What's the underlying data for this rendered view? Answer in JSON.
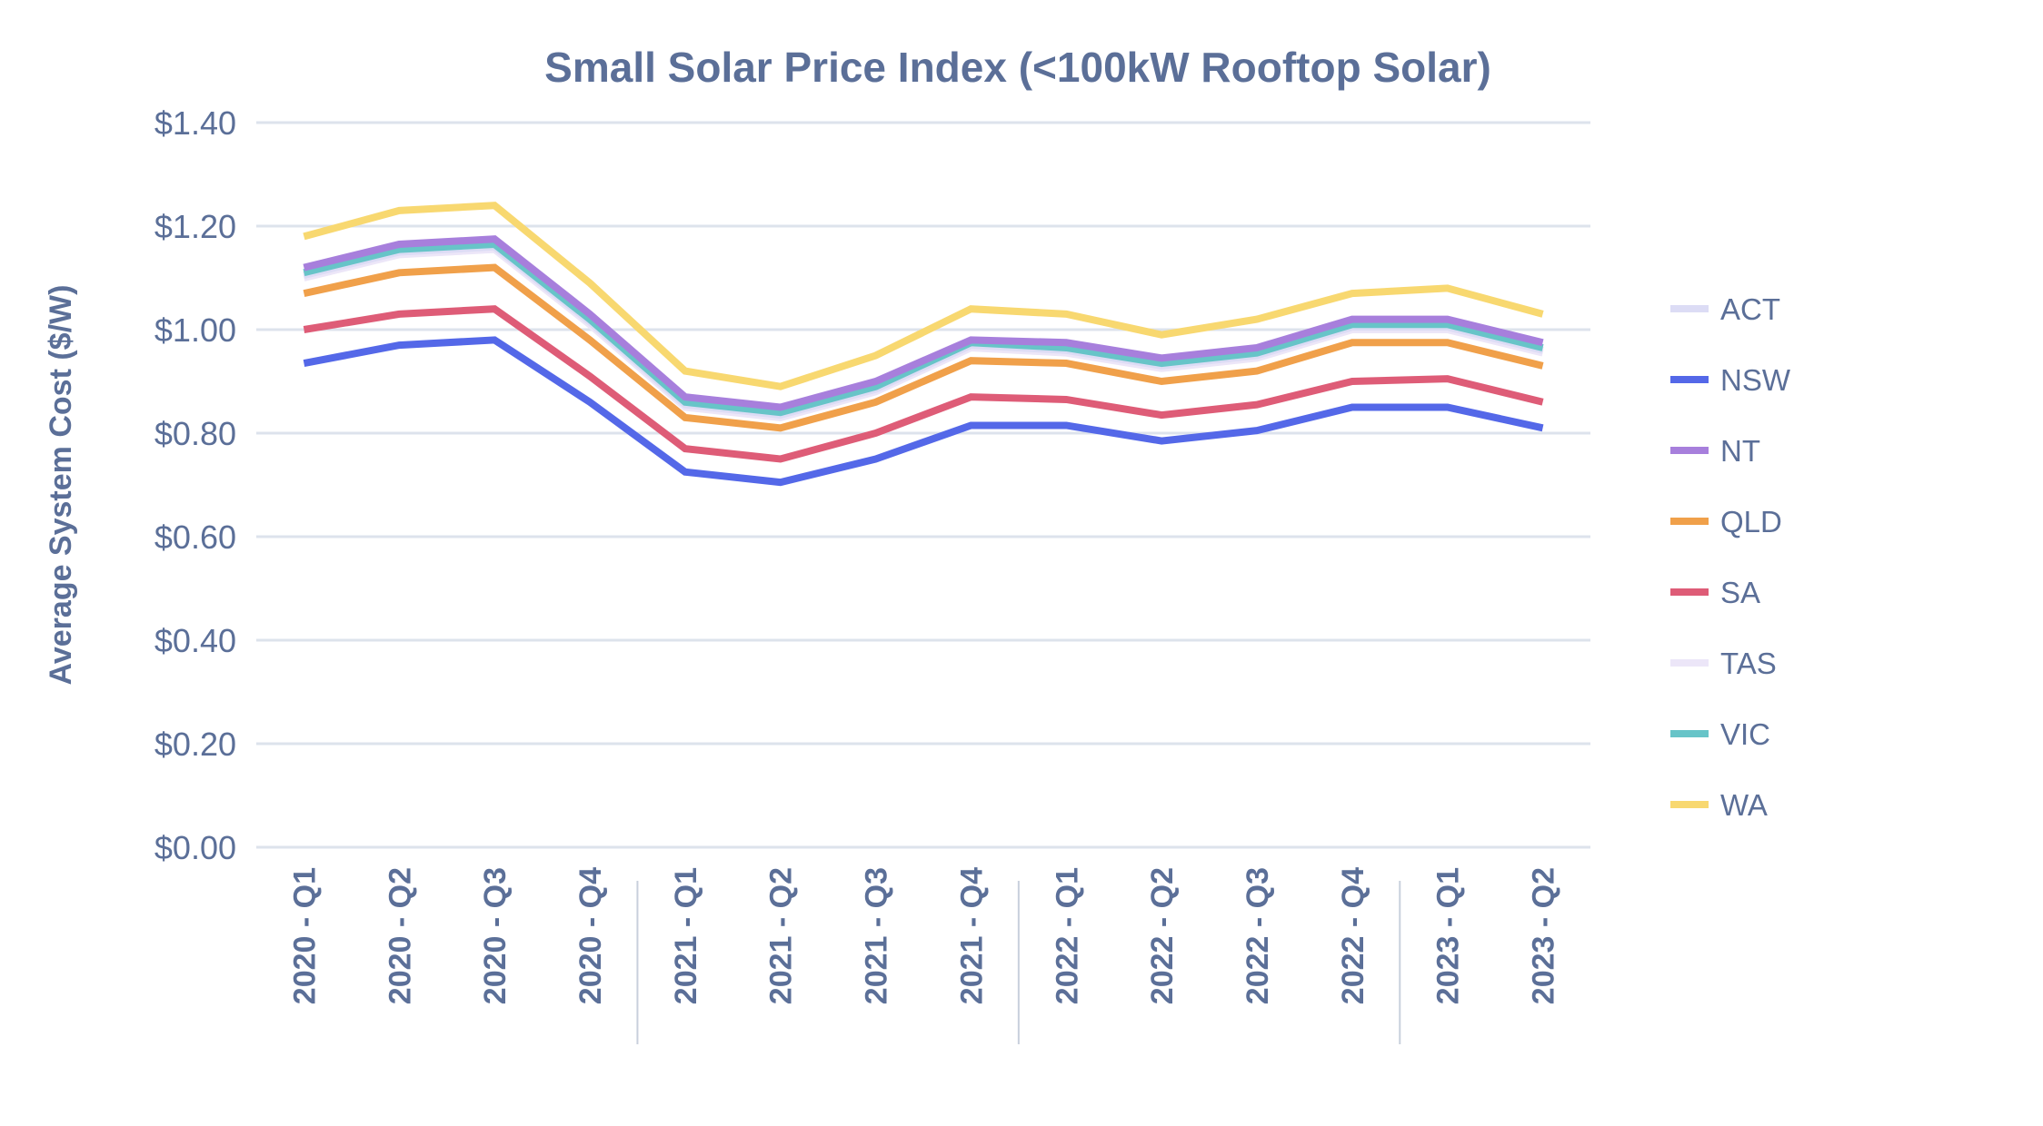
{
  "chart_data": {
    "type": "line",
    "title": "Small Solar Price Index (<100kW Rooftop Solar)",
    "xlabel": "",
    "ylabel": "Average System Cost ($/W)",
    "ylim": [
      0,
      1.4
    ],
    "yticks": [
      "$0.00",
      "$0.20",
      "$0.40",
      "$0.60",
      "$0.80",
      "$1.00",
      "$1.20",
      "$1.40"
    ],
    "grid": true,
    "legend": "right",
    "categories": [
      "2020 - Q1",
      "2020 - Q2",
      "2020 - Q3",
      "2020 - Q4",
      "2021 - Q1",
      "2021 - Q2",
      "2021 - Q3",
      "2021 - Q4",
      "2022 - Q1",
      "2022 - Q2",
      "2022 - Q3",
      "2022 - Q4",
      "2023 - Q1",
      "2023 - Q2"
    ],
    "series": [
      {
        "name": "ACT",
        "color": "#dcdcf5",
        "values": [
          1.105,
          1.15,
          1.16,
          1.015,
          0.855,
          0.835,
          0.885,
          0.97,
          0.96,
          0.93,
          0.95,
          1.005,
          1.005,
          0.96
        ]
      },
      {
        "name": "NSW",
        "color": "#5468e8",
        "values": [
          0.935,
          0.97,
          0.98,
          0.86,
          0.725,
          0.705,
          0.75,
          0.815,
          0.815,
          0.785,
          0.805,
          0.85,
          0.85,
          0.81
        ]
      },
      {
        "name": "NT",
        "color": "#a77fdc",
        "values": [
          1.12,
          1.165,
          1.175,
          1.03,
          0.87,
          0.85,
          0.9,
          0.98,
          0.975,
          0.945,
          0.965,
          1.02,
          1.02,
          0.975
        ]
      },
      {
        "name": "QLD",
        "color": "#f0a04a",
        "values": [
          1.07,
          1.11,
          1.12,
          0.98,
          0.83,
          0.81,
          0.86,
          0.94,
          0.935,
          0.9,
          0.92,
          0.975,
          0.975,
          0.93
        ]
      },
      {
        "name": "SA",
        "color": "#de5c77",
        "values": [
          1.0,
          1.03,
          1.04,
          0.91,
          0.77,
          0.75,
          0.8,
          0.87,
          0.865,
          0.835,
          0.855,
          0.9,
          0.905,
          0.86
        ]
      },
      {
        "name": "TAS",
        "color": "#ece6f8",
        "values": [
          1.1,
          1.145,
          1.155,
          1.01,
          0.85,
          0.83,
          0.88,
          0.965,
          0.955,
          0.925,
          0.945,
          1.0,
          1.0,
          0.955
        ]
      },
      {
        "name": "VIC",
        "color": "#67c4c8",
        "values": [
          1.11,
          1.155,
          1.165,
          1.02,
          0.86,
          0.84,
          0.89,
          0.975,
          0.965,
          0.935,
          0.955,
          1.01,
          1.01,
          0.965
        ]
      },
      {
        "name": "WA",
        "color": "#f8d870",
        "values": [
          1.18,
          1.23,
          1.24,
          1.09,
          0.92,
          0.89,
          0.95,
          1.04,
          1.03,
          0.99,
          1.02,
          1.07,
          1.08,
          1.03
        ]
      }
    ]
  }
}
